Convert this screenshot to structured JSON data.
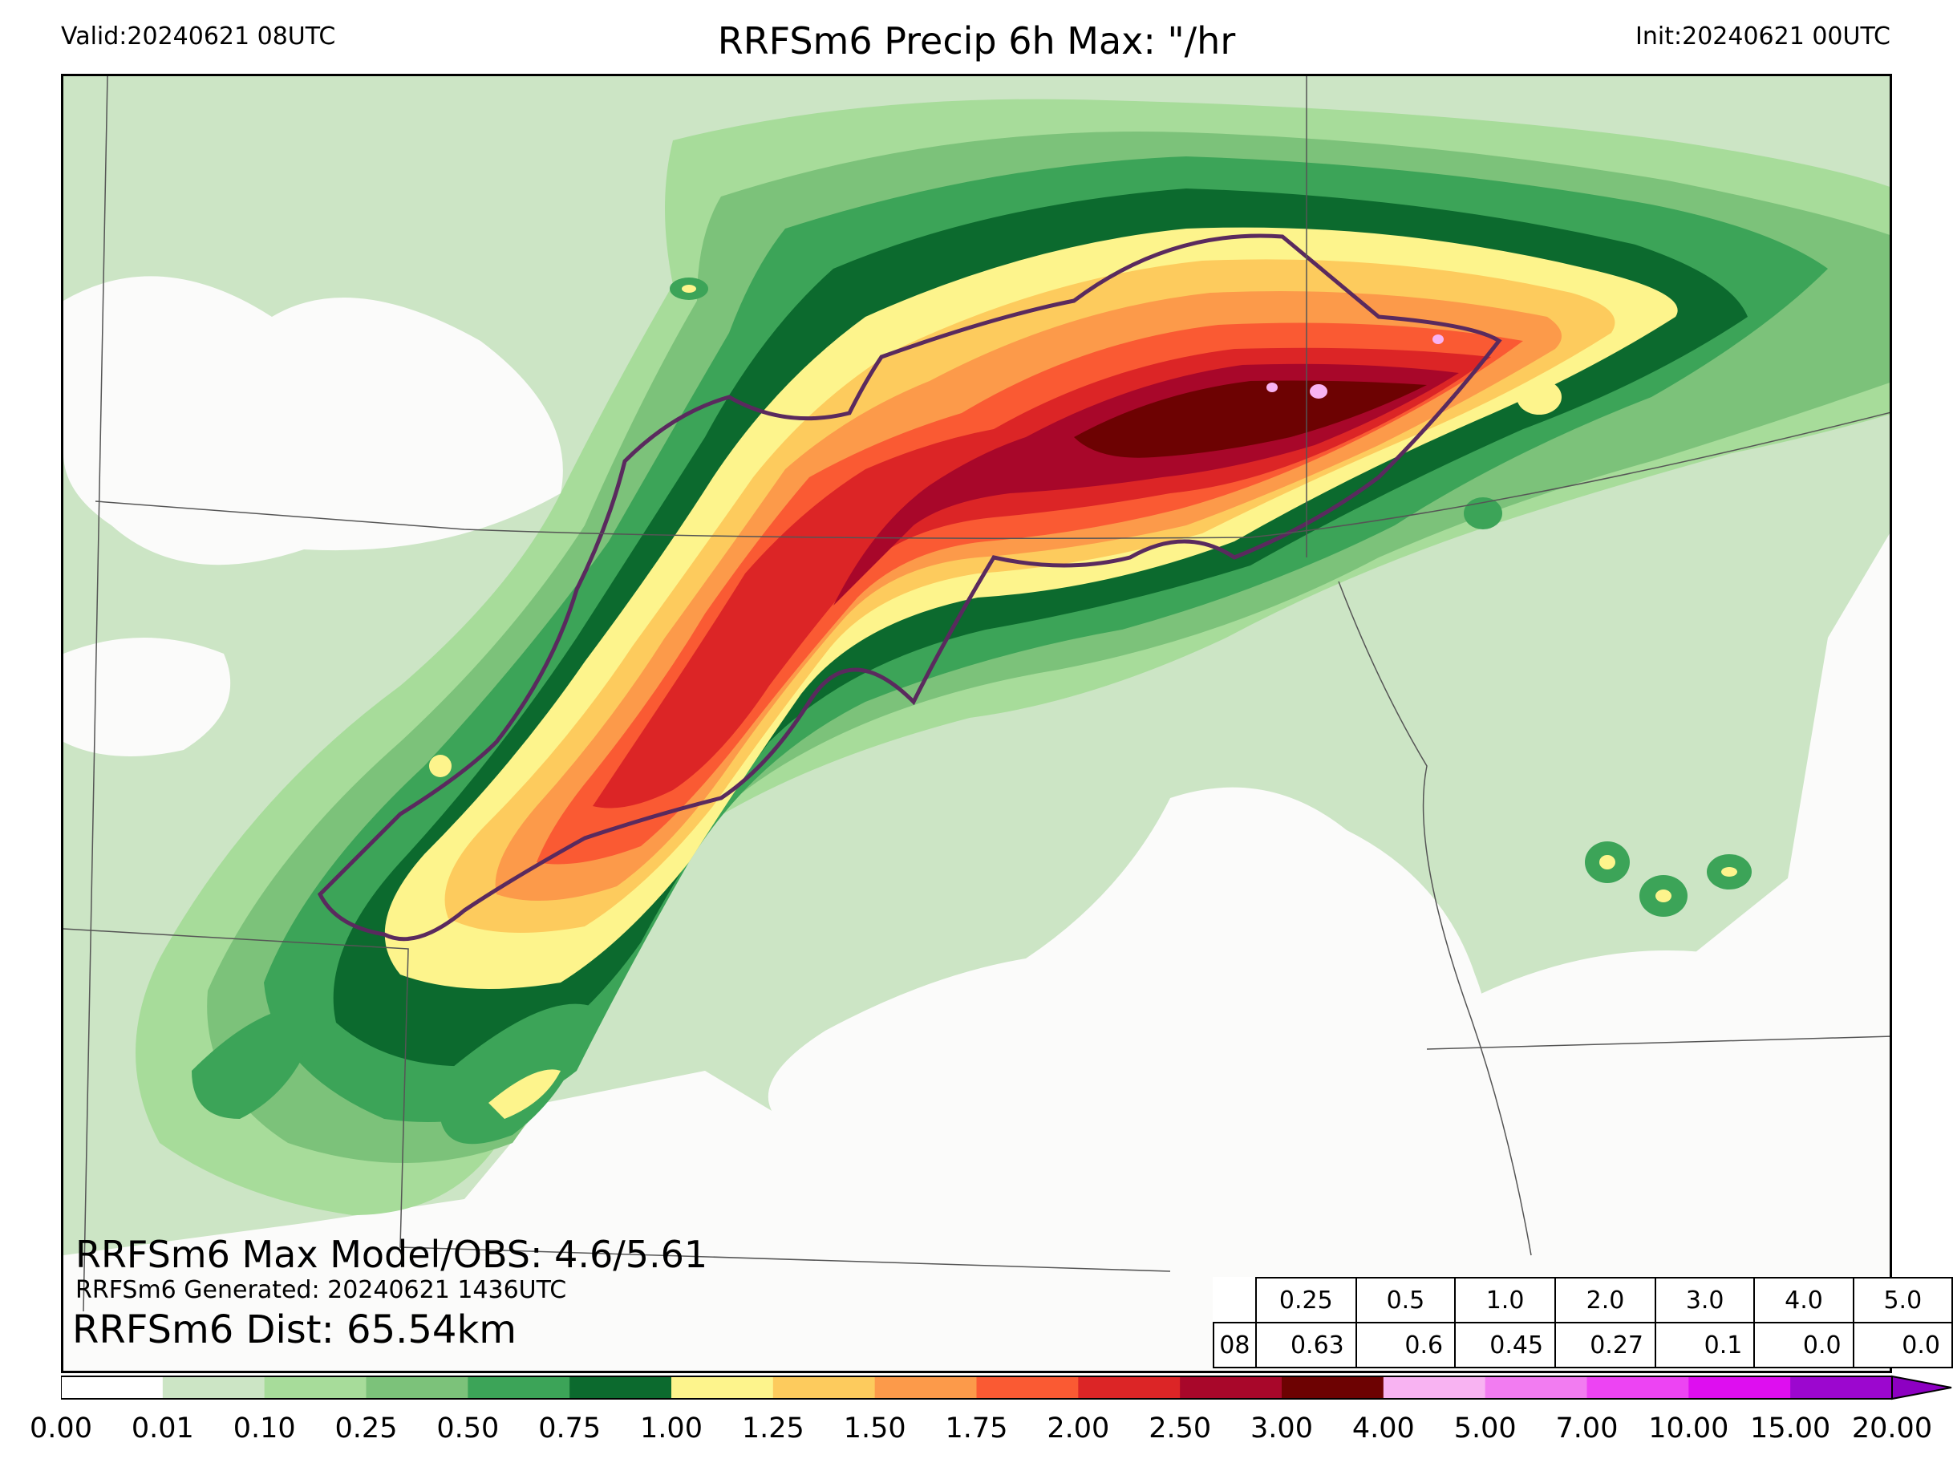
{
  "header": {
    "valid": "Valid:20240621 08UTC",
    "title": "RRFSm6 Precip 6h Max: \"/hr",
    "init": "Init:20240621 00UTC"
  },
  "stats": {
    "max_line": "RRFSm6 Max Model/OBS: 4.6/5.61",
    "generated_line": "RRFSm6 Generated: 20240621 1436UTC",
    "dist_line": "RRFSm6 Dist: 65.54km"
  },
  "table": {
    "thresholds": [
      "0.25",
      "0.5",
      "1.0",
      "2.0",
      "3.0",
      "4.0",
      "5.0"
    ],
    "row_label": "08",
    "values": [
      "0.63",
      "0.6",
      "0.45",
      "0.27",
      "0.1",
      "0.0",
      "0.0"
    ]
  },
  "colorbar": {
    "ticks": [
      "0.00",
      "0.01",
      "0.10",
      "0.25",
      "0.50",
      "0.75",
      "1.00",
      "1.25",
      "1.50",
      "1.75",
      "2.00",
      "2.50",
      "3.00",
      "4.00",
      "5.00",
      "7.00",
      "10.00",
      "15.00",
      "20.00"
    ],
    "colors": [
      "#ffffff",
      "#cce5c5",
      "#a7dc9a",
      "#7cc27a",
      "#3ca458",
      "#0c6a2e",
      "#fdf48c",
      "#fdcb5d",
      "#fc9a4a",
      "#fa5a33",
      "#dc2526",
      "#a8072a",
      "#6d0202",
      "#f8b3f2",
      "#f27cf1",
      "#ed44f3",
      "#de0ef0",
      "#9c07cf"
    ],
    "extend_color": "#8d00c2"
  },
  "palette": {
    "light_green": "#cce5c5",
    "green_2": "#a7dc9a",
    "green_3": "#7cc27a",
    "green_4": "#3ca458",
    "dark_green": "#0c6a2e",
    "yellow": "#fdf48c",
    "gold": "#fdcb5d",
    "orange": "#fc9a4a",
    "red_orange": "#fa5a33",
    "red": "#dc2526",
    "crimson": "#a8072a",
    "maroon": "#6d0202",
    "pink": "#f8b3f2",
    "obs_contour": "#5a2a5e"
  }
}
